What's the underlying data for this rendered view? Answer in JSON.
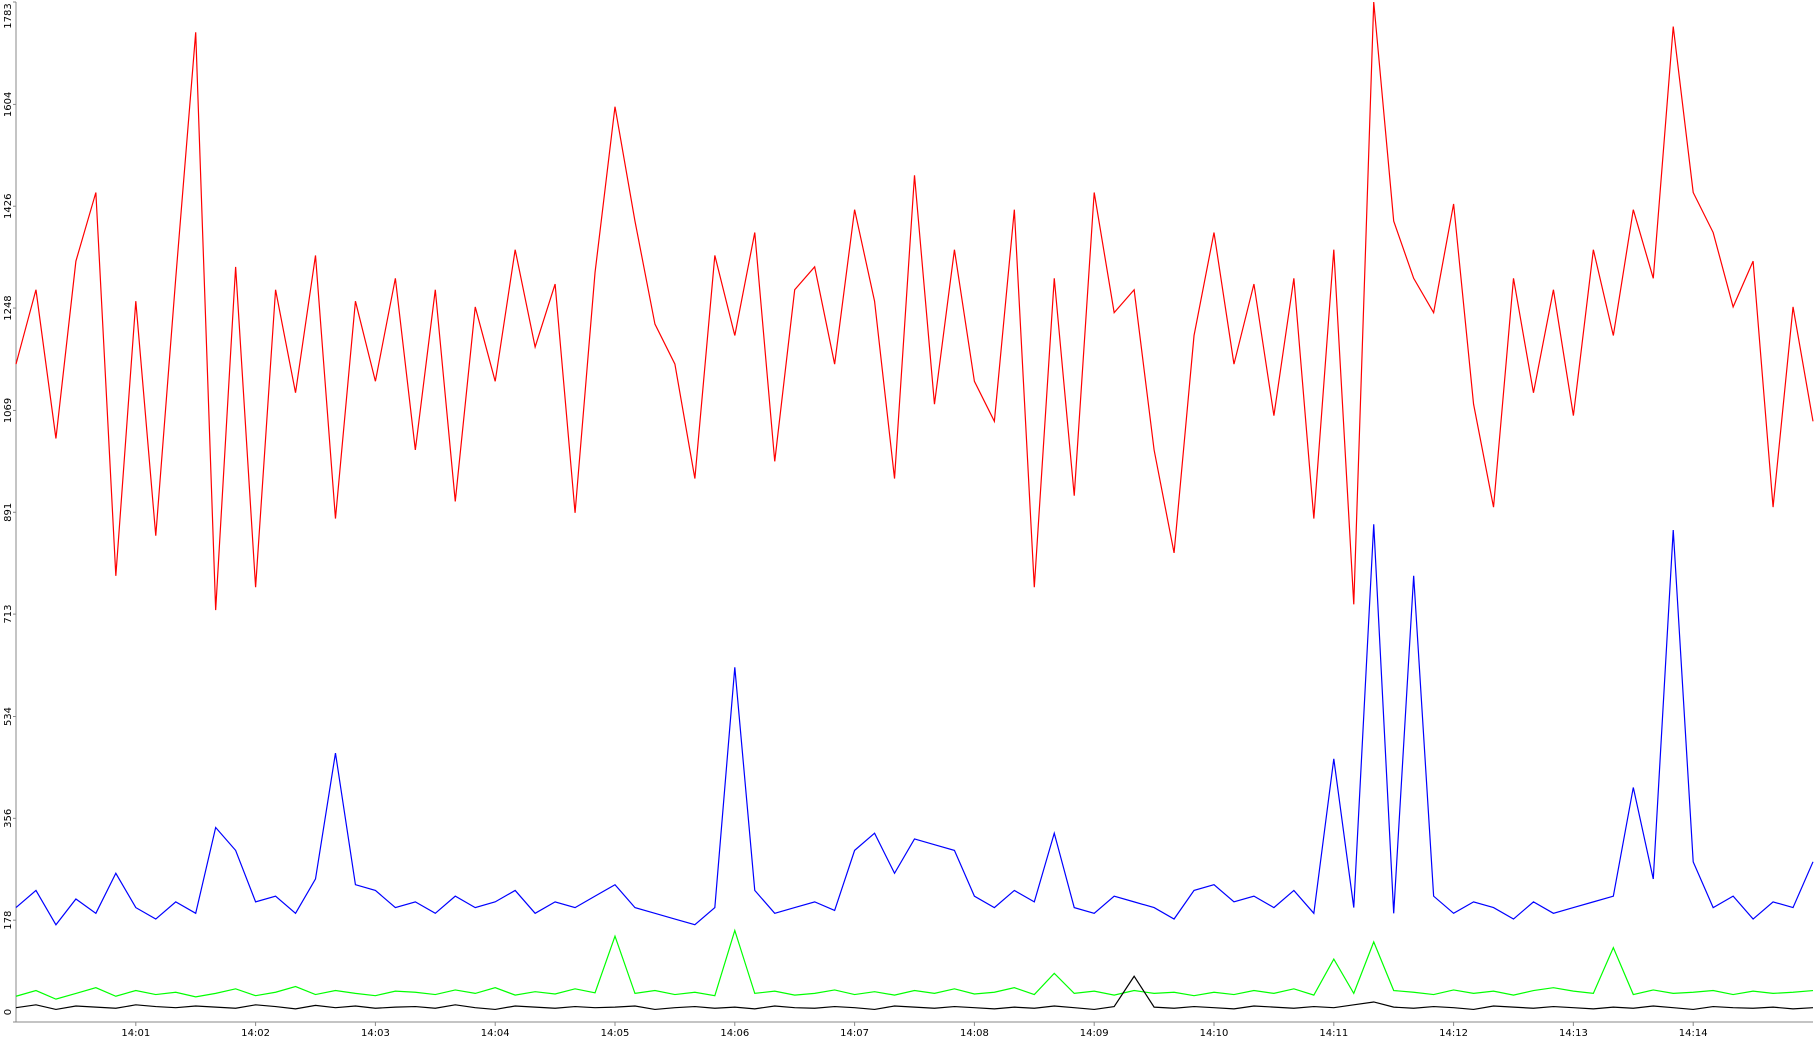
{
  "chart_data": {
    "type": "line",
    "categories": [
      null,
      null,
      null,
      null,
      null,
      null,
      "14:01",
      null,
      null,
      null,
      null,
      null,
      "14:02",
      null,
      null,
      null,
      null,
      null,
      "14:03",
      null,
      null,
      null,
      null,
      null,
      "14:04",
      null,
      null,
      null,
      null,
      null,
      "14:05",
      null,
      null,
      null,
      null,
      null,
      "14:06",
      null,
      null,
      null,
      null,
      null,
      "14:07",
      null,
      null,
      null,
      null,
      null,
      "14:08",
      null,
      null,
      null,
      null,
      null,
      "14:09",
      null,
      null,
      null,
      null,
      null,
      "14:10",
      null,
      null,
      null,
      null,
      null,
      "14:11",
      null,
      null,
      null,
      null,
      null,
      "14:12",
      null,
      null,
      null,
      null,
      null,
      "14:13",
      null,
      null,
      null,
      null,
      null,
      "14:14",
      null,
      null,
      null,
      null,
      null,
      null
    ],
    "series": [
      {
        "color": "#ff0000",
        "values": [
          1150,
          1280,
          1020,
          1330,
          1450,
          780,
          1260,
          850,
          1300,
          1730,
          720,
          1320,
          760,
          1280,
          1100,
          1340,
          880,
          1260,
          1120,
          1300,
          1000,
          1280,
          910,
          1250,
          1120,
          1350,
          1180,
          1290,
          890,
          1310,
          1600,
          1400,
          1220,
          1150,
          950,
          1340,
          1200,
          1380,
          980,
          1280,
          1320,
          1150,
          1420,
          1260,
          950,
          1480,
          1080,
          1350,
          1120,
          1050,
          1420,
          760,
          1300,
          920,
          1450,
          1240,
          1280,
          1000,
          820,
          1200,
          1380,
          1150,
          1290,
          1060,
          1300,
          880,
          1350,
          730,
          1783,
          1400,
          1300,
          1240,
          1430,
          1080,
          900,
          1300,
          1100,
          1280,
          1060,
          1350,
          1200,
          1420,
          1300,
          1740,
          1450,
          1380,
          1250,
          1330,
          900,
          1250,
          1050
        ]
      },
      {
        "color": "#0000ff",
        "values": [
          200,
          230,
          170,
          215,
          190,
          260,
          200,
          180,
          210,
          190,
          340,
          300,
          210,
          220,
          190,
          250,
          470,
          240,
          230,
          200,
          210,
          190,
          220,
          200,
          210,
          230,
          190,
          210,
          200,
          220,
          240,
          200,
          190,
          180,
          170,
          200,
          620,
          230,
          190,
          200,
          210,
          195,
          300,
          330,
          260,
          320,
          310,
          300,
          220,
          200,
          230,
          210,
          330,
          200,
          190,
          220,
          210,
          200,
          180,
          230,
          240,
          210,
          220,
          200,
          230,
          190,
          460,
          200,
          870,
          190,
          780,
          220,
          190,
          210,
          200,
          180,
          210,
          190,
          200,
          210,
          220,
          410,
          250,
          860,
          280,
          200,
          220,
          180,
          210,
          200,
          280
        ]
      },
      {
        "color": "#00ff00",
        "values": [
          45,
          55,
          40,
          50,
          60,
          45,
          55,
          48,
          52,
          44,
          50,
          58,
          46,
          52,
          62,
          48,
          55,
          50,
          46,
          54,
          52,
          48,
          56,
          50,
          60,
          47,
          53,
          49,
          58,
          51,
          150,
          50,
          55,
          48,
          52,
          46,
          160,
          50,
          54,
          47,
          50,
          56,
          48,
          53,
          47,
          55,
          50,
          58,
          49,
          52,
          60,
          48,
          85,
          50,
          54,
          47,
          55,
          50,
          52,
          46,
          52,
          48,
          55,
          50,
          58,
          47,
          110,
          50,
          140,
          55,
          52,
          48,
          56,
          50,
          54,
          47,
          55,
          60,
          54,
          50,
          130,
          48,
          56,
          50,
          52,
          55,
          48,
          54,
          50,
          52,
          55
        ]
      },
      {
        "color": "#000000",
        "values": [
          25,
          30,
          22,
          28,
          26,
          24,
          30,
          27,
          25,
          28,
          26,
          24,
          30,
          27,
          23,
          29,
          25,
          28,
          24,
          26,
          27,
          24,
          30,
          25,
          22,
          28,
          26,
          24,
          27,
          25,
          26,
          28,
          22,
          25,
          27,
          24,
          26,
          23,
          28,
          25,
          24,
          27,
          25,
          22,
          28,
          26,
          24,
          27,
          25,
          23,
          26,
          24,
          28,
          25,
          22,
          27,
          80,
          26,
          24,
          27,
          25,
          23,
          28,
          26,
          24,
          27,
          25,
          30,
          35,
          26,
          24,
          27,
          25,
          22,
          28,
          26,
          24,
          27,
          25,
          23,
          26,
          24,
          28,
          25,
          22,
          27,
          25,
          24,
          26,
          23,
          25
        ]
      }
    ],
    "ylim": [
      0,
      1783
    ],
    "yticks": [
      0,
      178,
      356,
      534,
      713,
      891,
      1069,
      1248,
      1426,
      1604,
      1783
    ]
  }
}
